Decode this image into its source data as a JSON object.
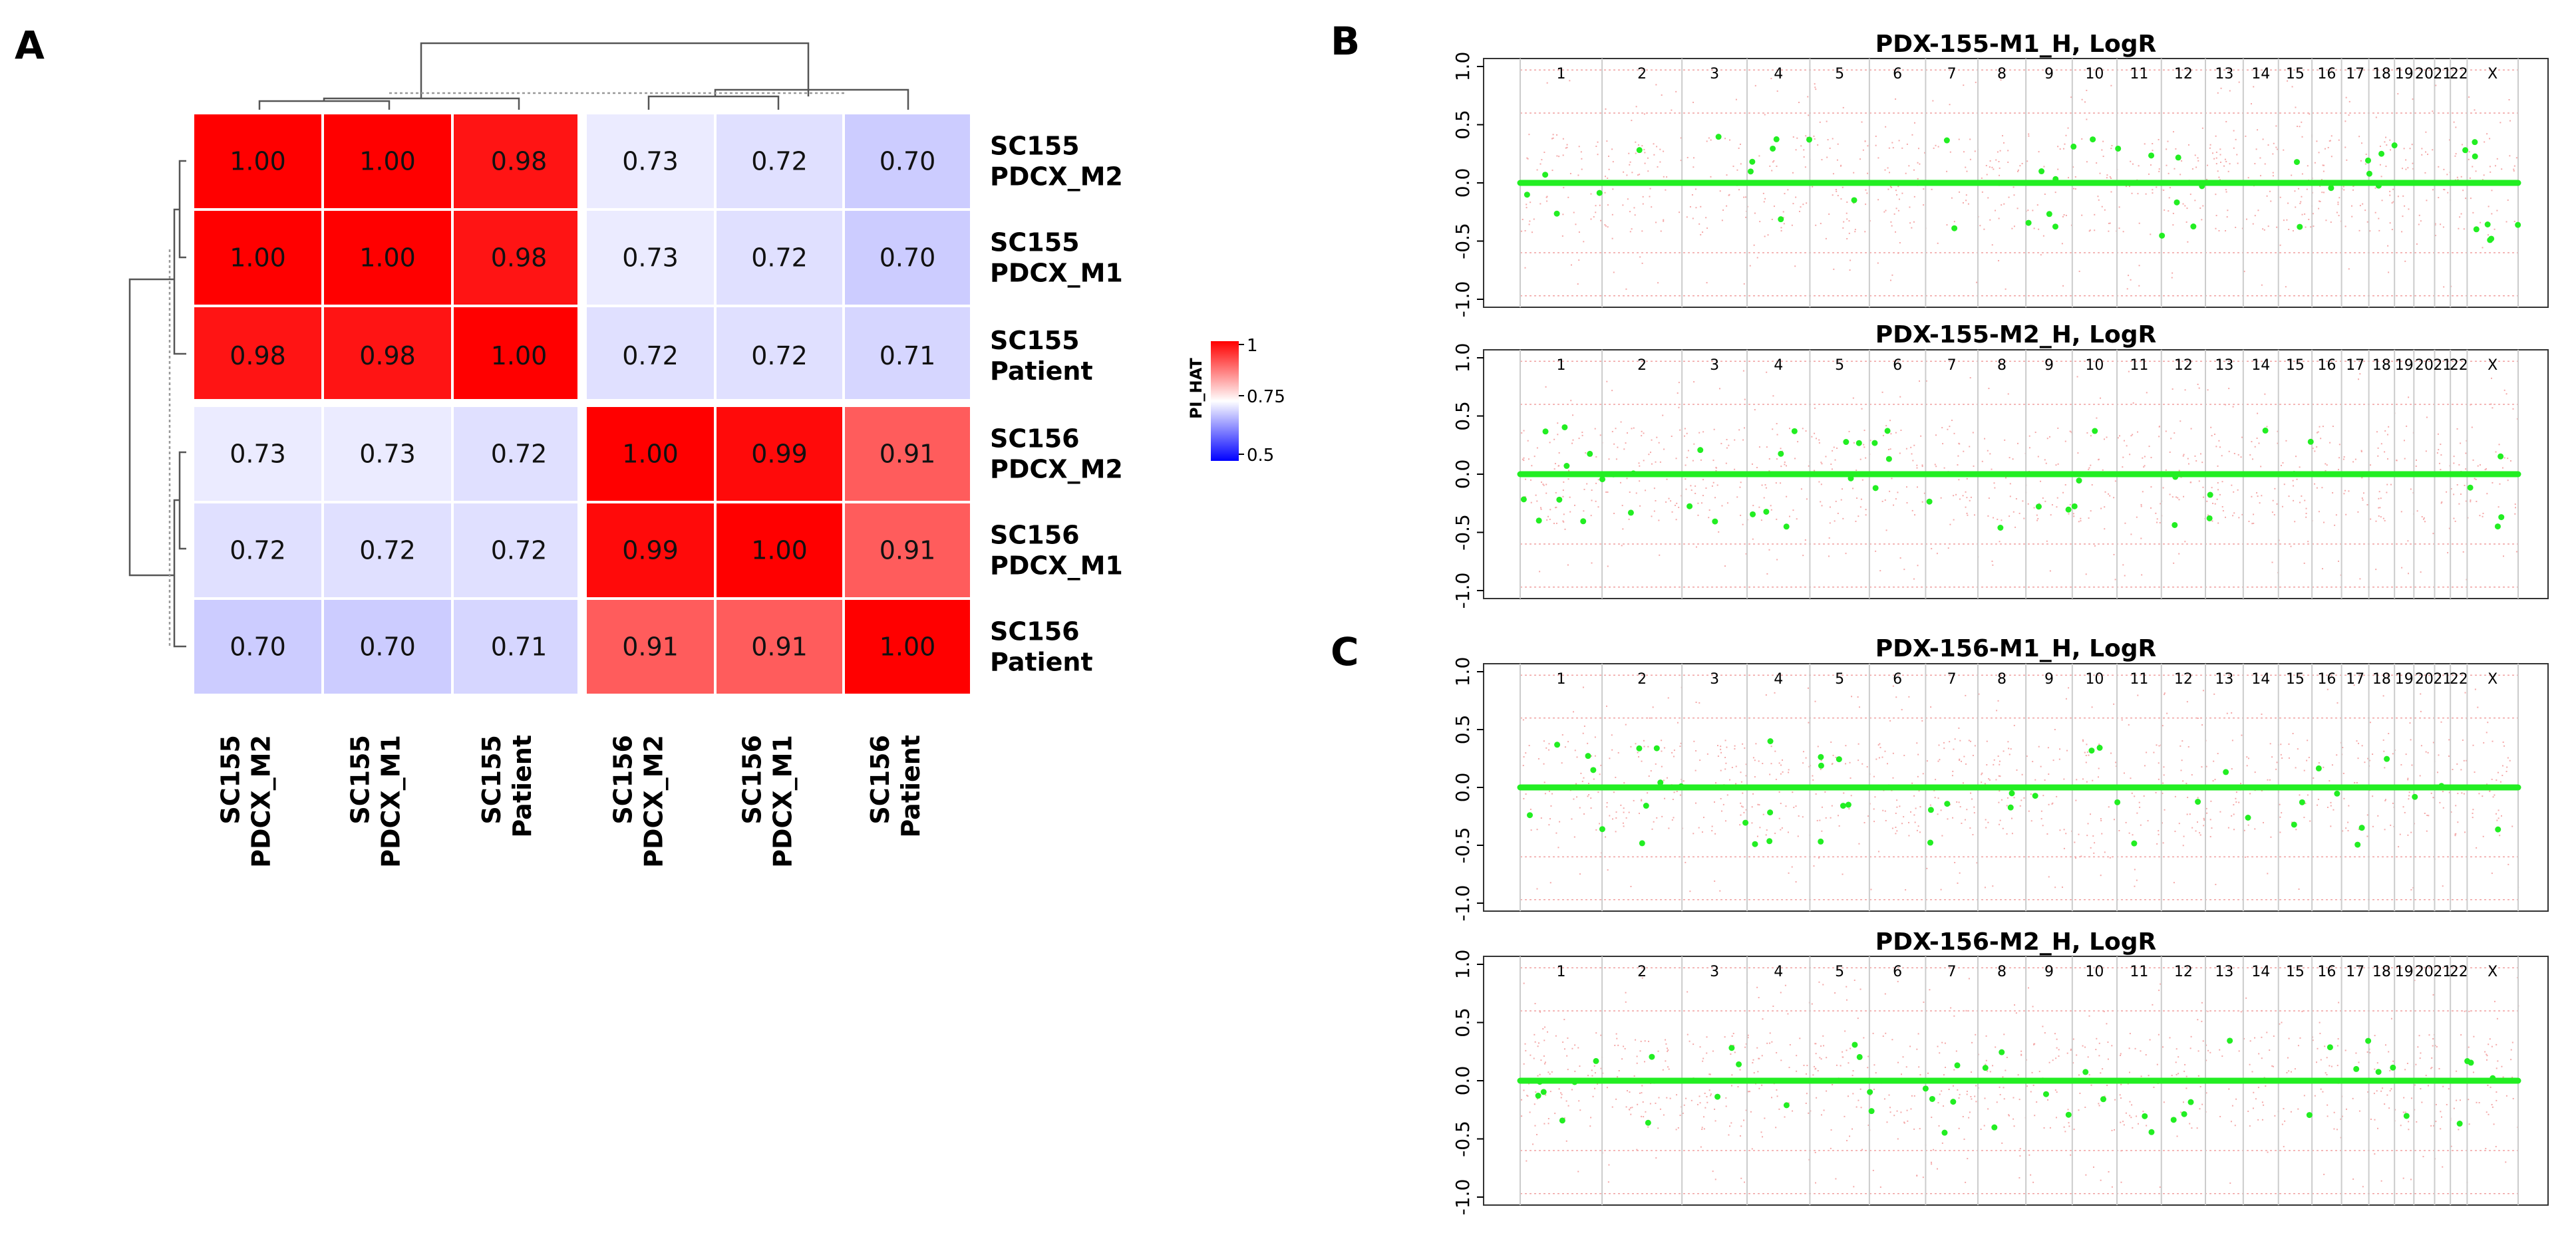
{
  "panels": {
    "a": "A",
    "b": "B",
    "c": "C"
  },
  "chart_data": [
    {
      "type": "heatmap",
      "rows": [
        "SC155\nPDCX_M2",
        "SC155\nPDCX_M1",
        "SC155\nPatient",
        "SC156\nPDCX_M2",
        "SC156\nPDCX_M1",
        "SC156\nPatient"
      ],
      "columns": [
        "SC155\nPDCX_M2",
        "SC155\nPDCX_M1",
        "SC155\nPatient",
        "SC156\nPDCX_M2",
        "SC156\nPDCX_M1",
        "SC156\nPatient"
      ],
      "values": [
        [
          1.0,
          1.0,
          0.98,
          0.73,
          0.72,
          0.7
        ],
        [
          1.0,
          1.0,
          0.98,
          0.73,
          0.72,
          0.7
        ],
        [
          0.98,
          0.98,
          1.0,
          0.72,
          0.72,
          0.71
        ],
        [
          0.73,
          0.73,
          0.72,
          1.0,
          0.99,
          0.91
        ],
        [
          0.72,
          0.72,
          0.72,
          0.99,
          1.0,
          0.91
        ],
        [
          0.7,
          0.7,
          0.71,
          0.91,
          0.91,
          1.0
        ]
      ],
      "legend": {
        "title": "PI_HAT",
        "ticks": [
          "1",
          "0.75",
          "0.5"
        ],
        "min": 0.5,
        "mid": 0.75,
        "max": 1
      },
      "colors": {
        "low": "#0000ff",
        "mid": "#ffffff",
        "high": "#ff0000"
      },
      "dendrograms": true
    },
    {
      "type": "scatter",
      "title": "PDX-155-M1_H, LogR",
      "ylim": [
        -1.0,
        1.0
      ],
      "yticks": [
        "1.0",
        "0.5",
        "0.0",
        "-0.5",
        "-1.0"
      ],
      "chromosomes": [
        "1",
        "2",
        "3",
        "4",
        "5",
        "6",
        "7",
        "8",
        "9",
        "10",
        "11",
        "12",
        "13",
        "14",
        "15",
        "16",
        "17",
        "18",
        "19",
        "20",
        "21",
        "22",
        "X"
      ],
      "series": [
        {
          "values": "segment LogR ≈ 0.0"
        }
      ]
    },
    {
      "type": "scatter",
      "title": "PDX-155-M2_H, LogR",
      "ylim": [
        -1.0,
        1.0
      ],
      "yticks": [
        "1.0",
        "0.5",
        "0.0",
        "-0.5",
        "-1.0"
      ],
      "chromosomes": [
        "1",
        "2",
        "3",
        "4",
        "5",
        "6",
        "7",
        "8",
        "9",
        "10",
        "11",
        "12",
        "13",
        "14",
        "15",
        "16",
        "17",
        "18",
        "19",
        "20",
        "21",
        "22",
        "X"
      ]
    },
    {
      "type": "scatter",
      "title": "PDX-156-M1_H, LogR",
      "ylim": [
        -1.0,
        1.0
      ],
      "yticks": [
        "1.0",
        "0.5",
        "0.0",
        "-0.5",
        "-1.0"
      ],
      "chromosomes": [
        "1",
        "2",
        "3",
        "4",
        "5",
        "6",
        "7",
        "8",
        "9",
        "10",
        "11",
        "12",
        "13",
        "14",
        "15",
        "16",
        "17",
        "18",
        "19",
        "20",
        "21",
        "22",
        "X"
      ]
    },
    {
      "type": "scatter",
      "title": "PDX-156-M2_H, LogR",
      "ylim": [
        -1.0,
        1.0
      ],
      "yticks": [
        "1.0",
        "0.5",
        "0.0",
        "-0.5",
        "-1.0"
      ],
      "chromosomes": [
        "1",
        "2",
        "3",
        "4",
        "5",
        "6",
        "7",
        "8",
        "9",
        "10",
        "11",
        "12",
        "13",
        "14",
        "15",
        "16",
        "17",
        "18",
        "19",
        "20",
        "21",
        "22",
        "X"
      ]
    }
  ]
}
